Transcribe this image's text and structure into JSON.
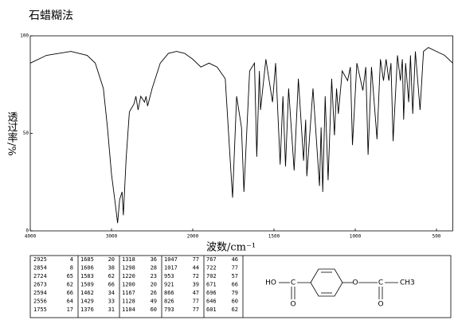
{
  "chart_data": {
    "type": "line",
    "title": "石蜡糊法",
    "xlabel": "波数/cm⁻¹",
    "ylabel": "透过率/%",
    "color": "#000000",
    "xlim": [
      4000,
      400
    ],
    "xticks": [
      4000,
      3000,
      2000,
      1500,
      1000,
      500
    ],
    "ylim": [
      0,
      100
    ],
    "yticks": [
      0,
      50,
      100
    ],
    "x": [
      4000,
      3800,
      3500,
      3300,
      3200,
      3100,
      3050,
      3000,
      2960,
      2925,
      2900,
      2870,
      2854,
      2820,
      2780,
      2724,
      2700,
      2673,
      2640,
      2594,
      2575,
      2556,
      2500,
      2400,
      2300,
      2200,
      2100,
      2000,
      1950,
      1900,
      1850,
      1800,
      1770,
      1755,
      1730,
      1700,
      1685,
      1650,
      1620,
      1606,
      1590,
      1583,
      1550,
      1509,
      1490,
      1462,
      1445,
      1429,
      1410,
      1376,
      1350,
      1318,
      1305,
      1298,
      1260,
      1220,
      1210,
      1200,
      1185,
      1167,
      1145,
      1128,
      1115,
      1104,
      1080,
      1047,
      1030,
      1017,
      990,
      953,
      935,
      921,
      900,
      866,
      845,
      826,
      810,
      793,
      780,
      767,
      740,
      722,
      710,
      702,
      690,
      671,
      660,
      646,
      630,
      601,
      580,
      550,
      500,
      450,
      400
    ],
    "values": [
      86,
      90,
      92,
      90,
      86,
      73,
      53,
      29,
      16,
      4,
      16,
      20,
      8,
      37,
      61,
      65,
      69,
      62,
      69,
      66,
      69,
      64,
      73,
      86,
      91,
      92,
      91,
      88,
      84,
      86,
      84,
      78,
      37,
      17,
      69,
      53,
      20,
      82,
      86,
      38,
      82,
      62,
      88,
      66,
      86,
      34,
      69,
      33,
      73,
      31,
      78,
      36,
      57,
      28,
      73,
      23,
      53,
      20,
      69,
      26,
      78,
      49,
      73,
      60,
      82,
      77,
      84,
      44,
      86,
      72,
      84,
      39,
      84,
      47,
      88,
      77,
      88,
      77,
      86,
      46,
      90,
      77,
      88,
      57,
      86,
      66,
      90,
      60,
      92,
      62,
      92,
      94,
      92,
      90,
      86
    ],
    "peak_table": [
      [
        2925,
        4
      ],
      [
        2854,
        8
      ],
      [
        2724,
        65
      ],
      [
        2673,
        62
      ],
      [
        2594,
        66
      ],
      [
        2556,
        64
      ],
      [
        1755,
        17
      ],
      [
        1685,
        20
      ],
      [
        1606,
        38
      ],
      [
        1583,
        62
      ],
      [
        1509,
        66
      ],
      [
        1462,
        34
      ],
      [
        1429,
        33
      ],
      [
        1376,
        31
      ],
      [
        1318,
        36
      ],
      [
        1298,
        28
      ],
      [
        1220,
        23
      ],
      [
        1200,
        20
      ],
      [
        1167,
        26
      ],
      [
        1128,
        49
      ],
      [
        1104,
        60
      ],
      [
        1047,
        77
      ],
      [
        1017,
        44
      ],
      [
        953,
        72
      ],
      [
        921,
        39
      ],
      [
        866,
        47
      ],
      [
        826,
        77
      ],
      [
        793,
        77
      ],
      [
        767,
        46
      ],
      [
        722,
        77
      ],
      [
        702,
        57
      ],
      [
        671,
        66
      ],
      [
        696,
        79
      ],
      [
        646,
        60
      ],
      [
        601,
        62
      ]
    ],
    "structure": [
      "HO",
      "C",
      "O",
      "O",
      "C",
      "O",
      "CH3"
    ]
  }
}
